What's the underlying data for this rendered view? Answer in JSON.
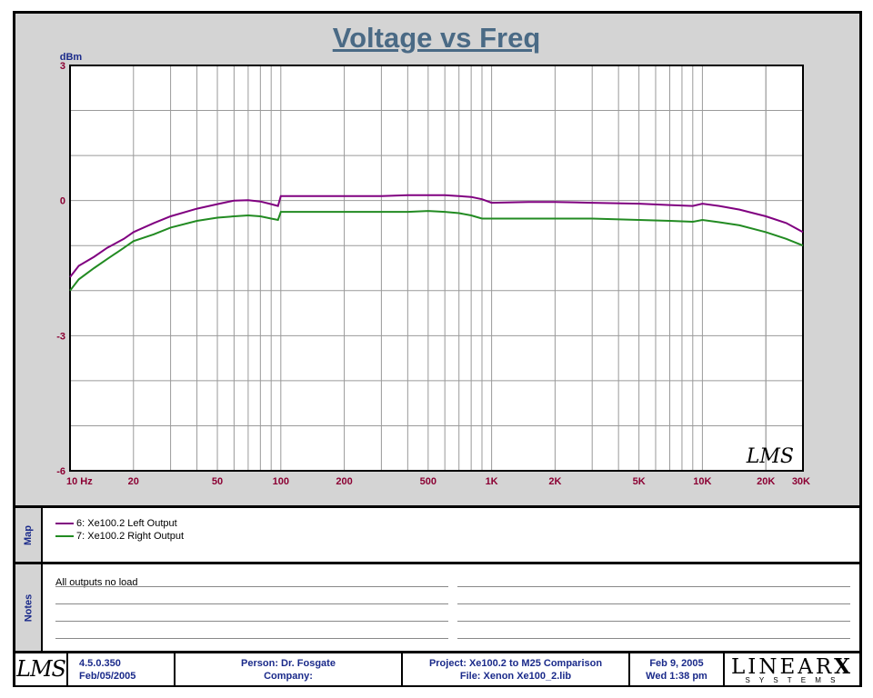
{
  "chart_data": {
    "type": "line",
    "title": "Voltage vs Freq",
    "ylabel": "dBm",
    "xscale": "log",
    "xlim": [
      10,
      30000
    ],
    "ylim": [
      -6,
      3
    ],
    "yticks": [
      3,
      0,
      -3,
      -6
    ],
    "ytick_labels": [
      "3",
      "0",
      "-3",
      "-6"
    ],
    "xticks": [
      10,
      20,
      50,
      100,
      200,
      500,
      1000,
      2000,
      5000,
      10000,
      20000,
      30000
    ],
    "xtick_labels": [
      "10  Hz",
      "20",
      "50",
      "100",
      "200",
      "500",
      "1K",
      "2K",
      "5K",
      "10K",
      "20K",
      "30K"
    ],
    "grid": true,
    "series": [
      {
        "name": "6: Xe100.2 Left Output",
        "color": "#800080",
        "x": [
          10,
          11,
          13,
          15,
          18,
          20,
          25,
          30,
          40,
          50,
          60,
          70,
          80,
          90,
          97,
          100,
          150,
          200,
          300,
          400,
          500,
          600,
          700,
          800,
          900,
          1000,
          1500,
          2000,
          3000,
          5000,
          7000,
          9000,
          10000,
          12000,
          15000,
          20000,
          25000,
          30000
        ],
        "y": [
          -1.7,
          -1.45,
          -1.25,
          -1.05,
          -0.85,
          -0.7,
          -0.5,
          -0.35,
          -0.18,
          -0.08,
          0.0,
          0.01,
          -0.02,
          -0.08,
          -0.12,
          0.1,
          0.1,
          0.1,
          0.1,
          0.12,
          0.12,
          0.12,
          0.1,
          0.08,
          0.03,
          -0.05,
          -0.03,
          -0.03,
          -0.05,
          -0.07,
          -0.1,
          -0.12,
          -0.07,
          -0.12,
          -0.2,
          -0.35,
          -0.5,
          -0.7
        ]
      },
      {
        "name": "7: Xe100.2 Right Output",
        "color": "#228B22",
        "x": [
          10,
          11,
          13,
          15,
          18,
          20,
          25,
          30,
          40,
          50,
          60,
          70,
          80,
          90,
          97,
          100,
          150,
          200,
          300,
          400,
          500,
          600,
          700,
          800,
          900,
          1000,
          1500,
          2000,
          3000,
          5000,
          7000,
          9000,
          10000,
          12000,
          15000,
          20000,
          25000,
          30000
        ],
        "y": [
          -2.0,
          -1.75,
          -1.5,
          -1.3,
          -1.05,
          -0.9,
          -0.75,
          -0.6,
          -0.45,
          -0.38,
          -0.35,
          -0.33,
          -0.35,
          -0.4,
          -0.43,
          -0.25,
          -0.25,
          -0.25,
          -0.25,
          -0.25,
          -0.23,
          -0.25,
          -0.28,
          -0.33,
          -0.4,
          -0.4,
          -0.4,
          -0.4,
          -0.4,
          -0.43,
          -0.45,
          -0.47,
          -0.43,
          -0.48,
          -0.55,
          -0.7,
          -0.85,
          -1.0
        ]
      }
    ]
  },
  "map_label": "Map",
  "notes_label": "Notes",
  "notes_text": "All outputs no load",
  "watermark": "LMS",
  "footer": {
    "logo": "LMS",
    "version": "4.5.0.350",
    "version_date": "Feb/05/2005",
    "person": "Person: Dr. Fosgate",
    "company": "Company:",
    "project": "Project: Xe100.2 to M25 Comparison",
    "file": "File: Xenon Xe100_2.lib",
    "date": "Feb  9, 2005",
    "time": "Wed  1:38 pm",
    "brand": "LINEAR",
    "brand_x": "X",
    "brand_sub": "S Y S T E M S"
  }
}
